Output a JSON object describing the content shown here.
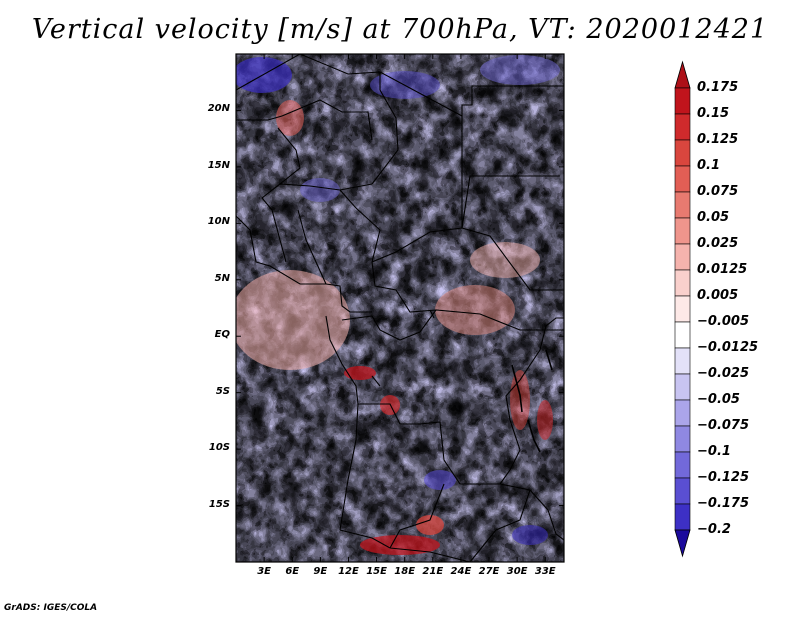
{
  "title": "Vertical velocity [m/s] at 700hPa, VT: 2020012421",
  "credit": "GrADS: IGES/COLA",
  "map": {
    "lat_range": [
      -20,
      25
    ],
    "lon_range": [
      0,
      35
    ],
    "lat_ticks": [
      {
        "value": 20,
        "label": "20N"
      },
      {
        "value": 15,
        "label": "15N"
      },
      {
        "value": 10,
        "label": "10N"
      },
      {
        "value": 5,
        "label": "5N"
      },
      {
        "value": 0,
        "label": "EQ"
      },
      {
        "value": -5,
        "label": "5S"
      },
      {
        "value": -10,
        "label": "10S"
      },
      {
        "value": -15,
        "label": "15S"
      }
    ],
    "lon_ticks": [
      {
        "value": 3,
        "label": "3E"
      },
      {
        "value": 6,
        "label": "6E"
      },
      {
        "value": 9,
        "label": "9E"
      },
      {
        "value": 12,
        "label": "12E"
      },
      {
        "value": 15,
        "label": "15E"
      },
      {
        "value": 18,
        "label": "18E"
      },
      {
        "value": 21,
        "label": "21E"
      },
      {
        "value": 24,
        "label": "24E"
      },
      {
        "value": 27,
        "label": "27E"
      },
      {
        "value": 30,
        "label": "30E"
      },
      {
        "value": 33,
        "label": "33E"
      }
    ],
    "land_mask_color": "#ffffff",
    "border_color": "#000000"
  },
  "colorbar": {
    "levels": [
      {
        "label": "0.175",
        "color": "#c0141c"
      },
      {
        "label": "0.15",
        "color": "#cf2a2c"
      },
      {
        "label": "0.125",
        "color": "#d9463e"
      },
      {
        "label": "0.1",
        "color": "#e25e55"
      },
      {
        "label": "0.075",
        "color": "#e87a70"
      },
      {
        "label": "0.05",
        "color": "#ef958c"
      },
      {
        "label": "0.025",
        "color": "#f5b3ad"
      },
      {
        "label": "0.0125",
        "color": "#f9d0cc"
      },
      {
        "label": "0.005",
        "color": "#fde9e7"
      },
      {
        "label": "-0.005",
        "color": "#ffffff"
      },
      {
        "label": "-0.0125",
        "color": "#e3e1f8"
      },
      {
        "label": "-0.025",
        "color": "#c8c4f1"
      },
      {
        "label": "-0.05",
        "color": "#aba5ea"
      },
      {
        "label": "-0.075",
        "color": "#8f88e2"
      },
      {
        "label": "-0.1",
        "color": "#7269da"
      },
      {
        "label": "-0.125",
        "color": "#5a4fd2"
      },
      {
        "label": "-0.175",
        "color": "#3d30c5"
      },
      {
        "label": "-0.2",
        "color": "#2818b2"
      }
    ],
    "top_arrow_color": "#ad1018",
    "bottom_arrow_color": "#1b0a9c"
  }
}
